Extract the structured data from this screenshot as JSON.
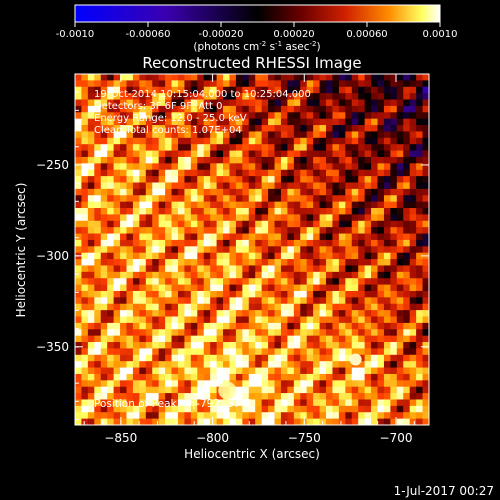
{
  "chart_data": {
    "type": "heatmap",
    "title": "Reconstructed RHESSI Image",
    "xlabel": "Heliocentric X (arcsec)",
    "ylabel": "Heliocentric Y (arcsec)",
    "xlim": [
      -875,
      -682
    ],
    "ylim": [
      -393,
      -200
    ],
    "x_ticks": [
      -850,
      -800,
      -750,
      -700
    ],
    "y_ticks": [
      -250,
      -300,
      -350
    ],
    "colorbar": {
      "label": "(photons cm",
      "label_sup1": "-2",
      "label_mid": " s",
      "label_sup2": "-1",
      "label_mid2": " asec",
      "label_sup3": "-2",
      "label_end": ")",
      "range": [
        -0.001,
        0.001
      ],
      "ticks": [
        "-0.0010",
        "-0.00060",
        "-0.00020",
        "0.00020",
        "0.00060",
        "0.0010"
      ],
      "tick_values": [
        -0.001,
        -0.0006,
        -0.0002,
        0.0002,
        0.0006,
        0.001
      ]
    },
    "colors": {
      "negative": [
        "#0000ff",
        "#3a00b0",
        "#2a0060",
        "#000000"
      ],
      "positive": [
        "#000000",
        "#5a0000",
        "#b01000",
        "#ff4000",
        "#ff9a00",
        "#ffff60",
        "#ffffff"
      ]
    },
    "info_lines": [
      "19-Oct-2014 10:15:04.000 to 10:25:04.000",
      "Detectors: 3F 6F 9F, Att 0",
      "Energy Range: 12.0 - 25.0 keV",
      "Clean    Total counts: 1.07E+04"
    ],
    "peak_label": "Position of Peak = [-792,-374]",
    "peak_position": [
      -792,
      -374
    ],
    "secondary_peak": [
      -722,
      -357
    ]
  },
  "footer": {
    "timestamp": "1-Jul-2017 00:27"
  }
}
